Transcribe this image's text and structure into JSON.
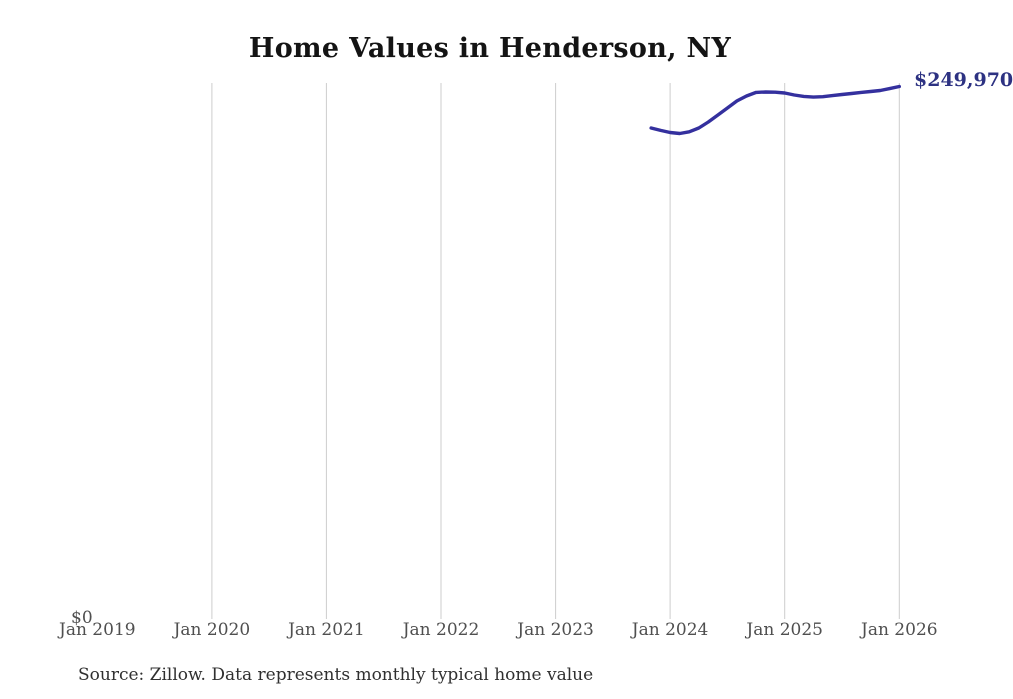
{
  "chart_data": {
    "type": "line",
    "title": "Home Values in Henderson, NY",
    "xlabel": "",
    "ylabel": "",
    "x_ticks": [
      "Jan 2019",
      "Jan 2020",
      "Jan 2021",
      "Jan 2022",
      "Jan 2023",
      "Jan 2024",
      "Jan 2025",
      "Jan 2026"
    ],
    "gridline_ticks": [
      "Jan 2020",
      "Jan 2021",
      "Jan 2022",
      "Jan 2023",
      "Jan 2024",
      "Jan 2025",
      "Jan 2026"
    ],
    "y_axis": {
      "min": 0,
      "min_label": "$0"
    },
    "x_range": [
      "Jan 2019",
      "Jan 2026"
    ],
    "months": [
      "Nov 2023",
      "Dec 2023",
      "Jan 2024",
      "Feb 2024",
      "Mar 2024",
      "Apr 2024",
      "May 2024",
      "Jun 2024",
      "Jul 2024",
      "Aug 2024",
      "Sep 2024",
      "Oct 2024",
      "Nov 2024",
      "Dec 2024",
      "Jan 2025",
      "Feb 2025",
      "Mar 2025",
      "Apr 2025",
      "May 2025",
      "Jun 2025",
      "Jul 2025",
      "Aug 2025",
      "Sep 2025",
      "Oct 2025",
      "Nov 2025",
      "Dec 2025",
      "Jan 2026"
    ],
    "values": [
      230500,
      229400,
      228400,
      227900,
      228700,
      230500,
      233300,
      236600,
      239900,
      243200,
      245500,
      247200,
      247400,
      247300,
      246900,
      246000,
      245300,
      245000,
      245200,
      245700,
      246200,
      246700,
      247200,
      247600,
      248100,
      249000,
      249970
    ],
    "end_label": "$249,970",
    "end_value": 249970,
    "legend": null,
    "grid": "vertical-only",
    "colors": {
      "line": "#34309e",
      "end_label": "#2d3282",
      "gridline": "#cdcdcd",
      "tick_label": "#4f4f4f",
      "title": "#141414",
      "source": "#303030"
    },
    "source": "Source: Zillow. Data represents monthly typical home value"
  }
}
